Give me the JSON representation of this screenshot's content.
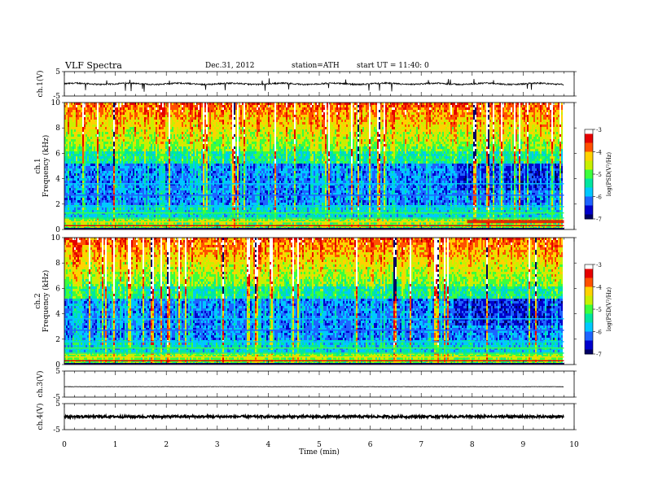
{
  "header": {
    "title": "VLF  Spectra",
    "date": "Dec.31, 2012",
    "station": "station=ATH",
    "start": "start  UT  =    11:40: 0"
  },
  "colors": {
    "spectro_scale": [
      "#000066",
      "#0000cc",
      "#1e64ff",
      "#00c8ff",
      "#00e6a0",
      "#3cff3c",
      "#c8f000",
      "#ffd200",
      "#ff5000",
      "#e60000",
      "#ffffff"
    ],
    "trace": "#000000"
  },
  "chart_data": [
    {
      "type": "line",
      "name": "ch1-waveform",
      "ylabel": "ch.1(V)",
      "ylim": [
        -5,
        5
      ],
      "yticks": [
        "5",
        "-5"
      ],
      "baseline": 0,
      "xlim": [
        0,
        10
      ],
      "data_end_min": 9.8,
      "description_values": "noisy signal near 0 V with spikes down to about -3 V"
    },
    {
      "type": "heatmap",
      "name": "ch1-spectrogram",
      "ylabel": "Frequency (kHz)",
      "ylabel2": "ch.1",
      "ylim": [
        0,
        10
      ],
      "yticks": [
        "0",
        "2",
        "4",
        "6",
        "8",
        "10"
      ],
      "xlim": [
        0,
        10
      ],
      "colorbar": {
        "label": "log(PSD(V²/Hz)",
        "ticks": [
          "-3",
          "-4",
          "-5",
          "-6",
          "-7"
        ],
        "range": [
          -7,
          -3
        ]
      }
    },
    {
      "type": "heatmap",
      "name": "ch2-spectrogram",
      "ylabel": "Frequency (kHz)",
      "ylabel2": "ch.2",
      "ylim": [
        0,
        10
      ],
      "yticks": [
        "0",
        "2",
        "4",
        "6",
        "8",
        "10"
      ],
      "xlim": [
        0,
        10
      ],
      "colorbar": {
        "label": "log(PSD(V²/Hz)",
        "ticks": [
          "-3",
          "-4",
          "-5",
          "-6",
          "-7"
        ],
        "range": [
          -7,
          -3
        ]
      }
    },
    {
      "type": "line",
      "name": "ch3-waveform",
      "ylabel": "ch.3(V)",
      "ylim": [
        -5,
        5
      ],
      "yticks": [
        "5",
        "-5"
      ],
      "baseline": -1,
      "xlim": [
        0,
        10
      ]
    },
    {
      "type": "line",
      "name": "ch4-waveform",
      "ylabel": "ch.4(V)",
      "ylim": [
        -5,
        5
      ],
      "yticks": [
        "5",
        "-5"
      ],
      "baseline": 0,
      "xlim": [
        0,
        10
      ]
    }
  ],
  "xaxis": {
    "label": "Time  (min)",
    "ticks": [
      "0",
      "1",
      "2",
      "3",
      "4",
      "5",
      "6",
      "7",
      "8",
      "9",
      "10"
    ]
  }
}
